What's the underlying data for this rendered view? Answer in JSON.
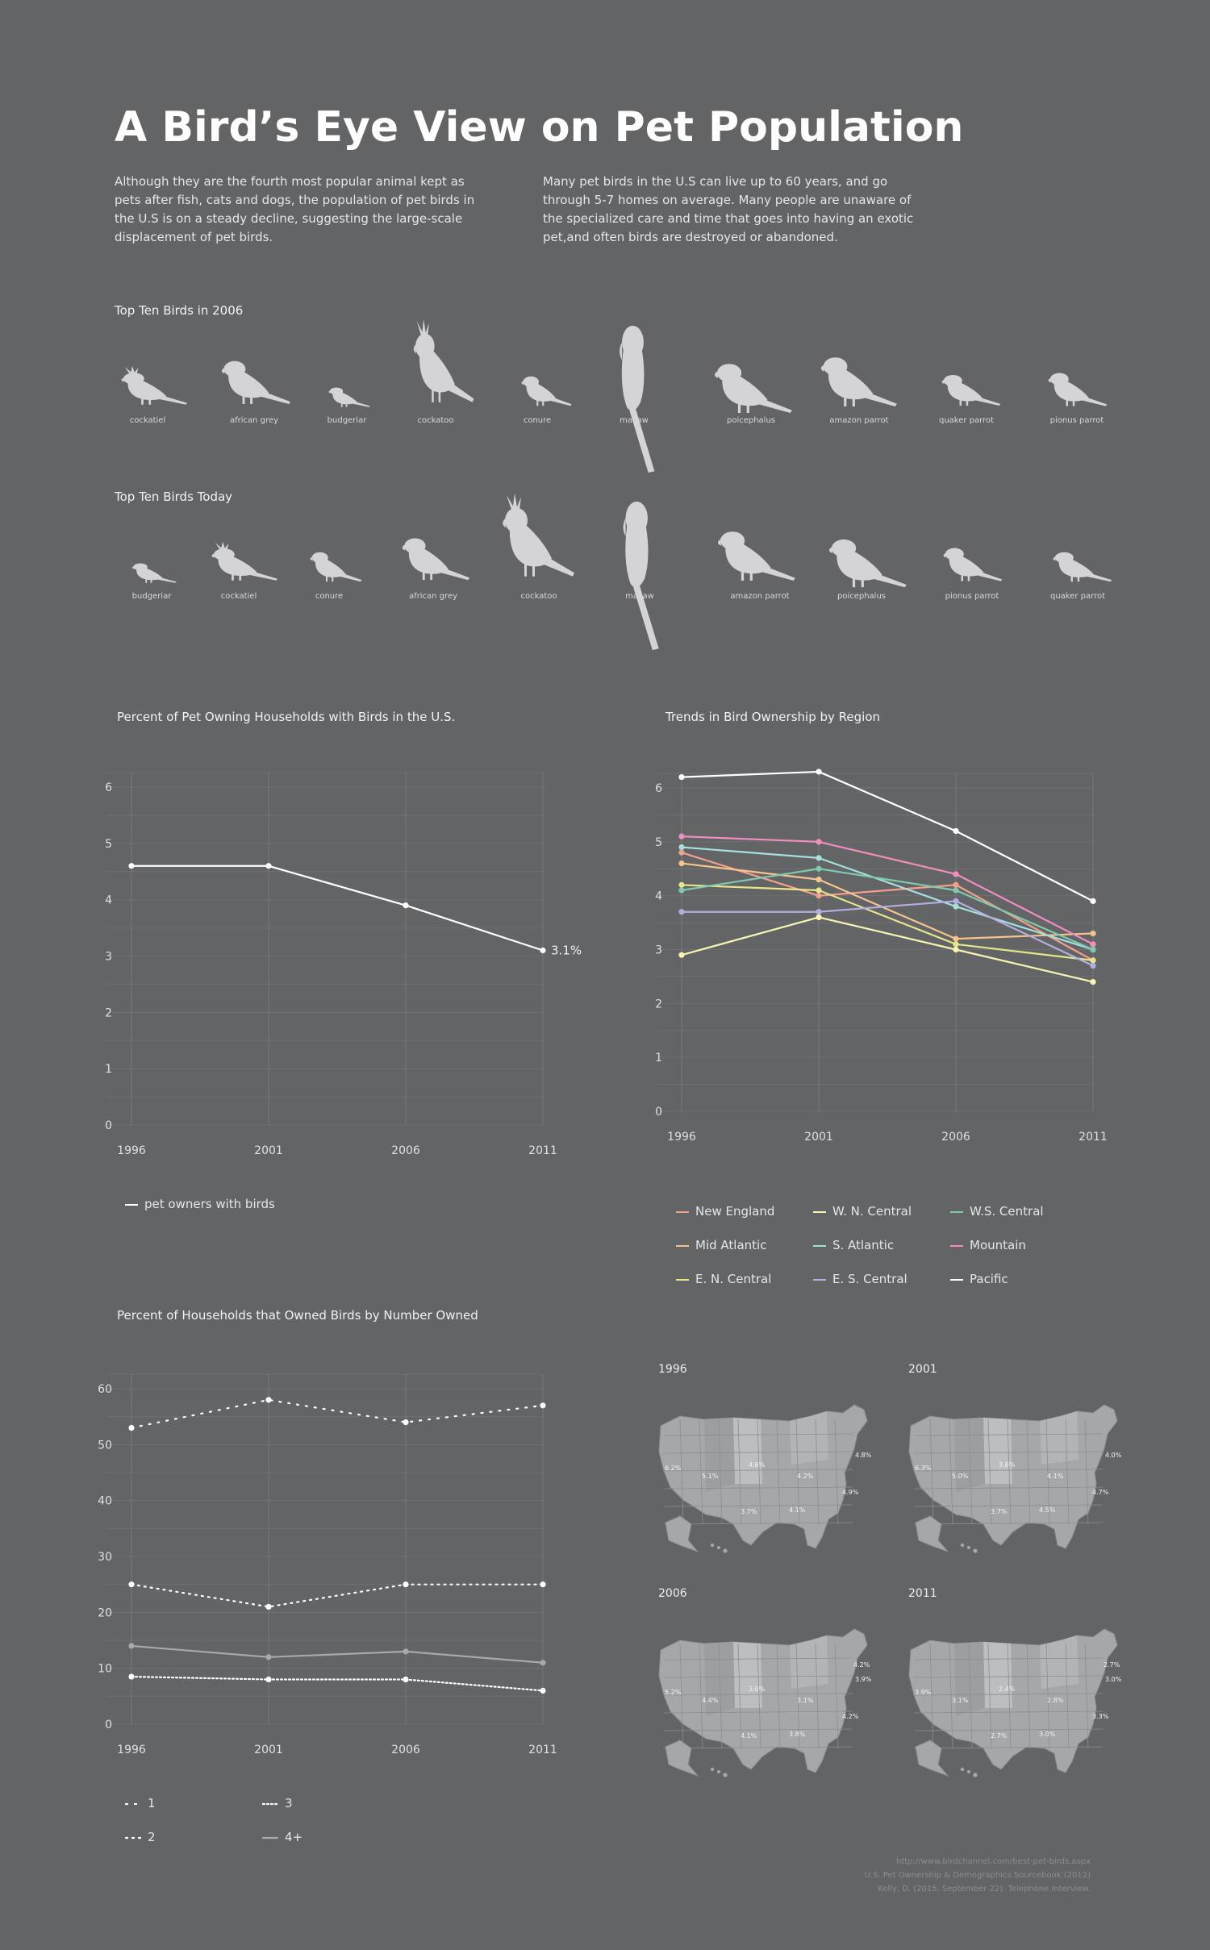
{
  "title": "A Bird’s Eye View on Pet Population",
  "intro": {
    "left": "Although they are the fourth most popular animal kept as pets after fish, cats and dogs, the population of pet birds in the U.S is on a steady decline, suggesting the large-scale displacement of pet birds.",
    "right": "Many pet birds in the U.S can live up to 60 years, and go through 5-7 homes on average. Many people are unaware of the specialized care and time that goes into having an exotic pet,and often birds are destroyed or abandoned."
  },
  "top_2006": {
    "title": "Top Ten Birds in 2006",
    "birds": [
      {
        "label": "cockatiel",
        "icon": "cockatiel-icon"
      },
      {
        "label": "african grey",
        "icon": "african-grey-icon"
      },
      {
        "label": "budgeriar",
        "icon": "budgerigar-icon"
      },
      {
        "label": "cockatoo",
        "icon": "cockatoo-icon"
      },
      {
        "label": "conure",
        "icon": "conure-icon"
      },
      {
        "label": "macaw",
        "icon": "macaw-icon"
      },
      {
        "label": "poicephalus",
        "icon": "poicephalus-icon"
      },
      {
        "label": "amazon parrot",
        "icon": "amazon-parrot-icon"
      },
      {
        "label": "quaker parrot",
        "icon": "quaker-parrot-icon"
      },
      {
        "label": "pionus parrot",
        "icon": "pionus-parrot-icon"
      }
    ]
  },
  "top_today": {
    "title": "Top Ten Birds Today",
    "birds": [
      {
        "label": "budgeriar",
        "icon": "budgerigar-icon"
      },
      {
        "label": "cockatiel",
        "icon": "cockatiel-icon"
      },
      {
        "label": "conure",
        "icon": "conure-icon"
      },
      {
        "label": "african grey",
        "icon": "african-grey-icon"
      },
      {
        "label": "cockatoo",
        "icon": "cockatoo-icon"
      },
      {
        "label": "macaw",
        "icon": "macaw-icon"
      },
      {
        "label": "amazon parrot",
        "icon": "amazon-parrot-icon"
      },
      {
        "label": "poicephalus",
        "icon": "poicephalus-icon"
      },
      {
        "label": "pionus parrot",
        "icon": "pionus-parrot-icon"
      },
      {
        "label": "quaker parrot",
        "icon": "quaker-parrot-icon"
      }
    ]
  },
  "colors": {
    "background": "#636466",
    "bird": "#d4d4d6",
    "grid": "#777879",
    "text": "#e6e6e6"
  },
  "chart_data": [
    {
      "type": "line",
      "title": "Percent of Pet Owning Households with Birds in the U.S.",
      "x": [
        "1996",
        "2001",
        "2006",
        "2011"
      ],
      "ylim": [
        0,
        6
      ],
      "yticks": [
        0,
        1,
        2,
        3,
        4,
        5,
        6
      ],
      "grid": true,
      "series": [
        {
          "name": "pet owners with birds",
          "values": [
            4.6,
            4.6,
            3.9,
            3.1
          ],
          "color": "#ffffff"
        }
      ],
      "annotations": [
        {
          "x": "2011",
          "text": "3.1%"
        }
      ],
      "legend": "bottom-left"
    },
    {
      "type": "line",
      "title": "Trends in Bird Ownership by Region",
      "x": [
        "1996",
        "2001",
        "2006",
        "2011"
      ],
      "ylim": [
        0,
        6
      ],
      "yticks": [
        0,
        1,
        2,
        3,
        4,
        5,
        6
      ],
      "grid": true,
      "series": [
        {
          "name": "New England",
          "values": [
            4.8,
            4.0,
            4.2,
            2.8
          ],
          "color": "#f2a08a"
        },
        {
          "name": "Mid Atlantic",
          "values": [
            4.6,
            4.3,
            3.2,
            3.3
          ],
          "color": "#f5c48e"
        },
        {
          "name": "E. N. Central",
          "values": [
            4.2,
            4.1,
            3.1,
            2.8
          ],
          "color": "#e5e58c"
        },
        {
          "name": "W. N. Central",
          "values": [
            2.9,
            3.6,
            3.0,
            2.4
          ],
          "color": "#f7f5b2"
        },
        {
          "name": "S. Atlantic",
          "values": [
            4.9,
            4.7,
            3.8,
            3.0
          ],
          "color": "#a6e0dc"
        },
        {
          "name": "E. S. Central",
          "values": [
            3.7,
            3.7,
            3.9,
            2.7
          ],
          "color": "#b3aee0"
        },
        {
          "name": "W.S. Central",
          "values": [
            4.1,
            4.5,
            4.1,
            3.0
          ],
          "color": "#7ecaad"
        },
        {
          "name": "Mountain",
          "values": [
            5.1,
            5.0,
            4.4,
            3.1
          ],
          "color": "#f08ebd"
        },
        {
          "name": "Pacific",
          "values": [
            6.2,
            6.3,
            5.2,
            3.9
          ],
          "color": "#ffffff"
        }
      ],
      "legend": "bottom"
    },
    {
      "type": "line",
      "title": "Percent of Households that Owned Birds by Number Owned",
      "x": [
        "1996",
        "2001",
        "2006",
        "2011"
      ],
      "ylim": [
        0,
        60
      ],
      "yticks": [
        0,
        10,
        20,
        30,
        40,
        50,
        60
      ],
      "grid": true,
      "series": [
        {
          "name": "1",
          "values": [
            53,
            58,
            54,
            57
          ],
          "color": "#ffffff",
          "dash": "2 9"
        },
        {
          "name": "2",
          "values": [
            25,
            21,
            25,
            25
          ],
          "color": "#ffffff",
          "dash": "2 6"
        },
        {
          "name": "3",
          "values": [
            8.5,
            8,
            8,
            6
          ],
          "color": "#ffffff",
          "dash": "2 3"
        },
        {
          "name": "4+",
          "values": [
            14,
            12,
            13,
            11
          ],
          "color": "#a9a9ab",
          "dash": ""
        }
      ],
      "legend": "bottom-left"
    }
  ],
  "maps": [
    {
      "year": "1996",
      "labels": [
        "6.2%",
        "5.1%",
        "4.6%",
        "4.2%",
        "4.9%",
        "4.1%",
        "3.7%",
        "4.8%"
      ]
    },
    {
      "year": "2001",
      "labels": [
        "6.3%",
        "5.0%",
        "3.6%",
        "4.1%",
        "4.7%",
        "4.5%",
        "3.7%",
        "4.0%"
      ]
    },
    {
      "year": "2006",
      "labels": [
        "5.2%",
        "4.4%",
        "3.0%",
        "3.1%",
        "4.2%",
        "3.8%",
        "4.1%",
        "3.9%",
        "4.2%"
      ]
    },
    {
      "year": "2011",
      "labels": [
        "3.9%",
        "3.1%",
        "2.4%",
        "2.8%",
        "3.3%",
        "3.0%",
        "2.7%",
        "3.0%",
        "2.7%"
      ]
    }
  ],
  "sources": [
    "http://www.birdchannel.com/best-pet-birds.aspx",
    "U.S. Pet Ownership & Demographics Sourcebook (2012)",
    "Kelly, D. (2015, September 22). Telephone interview."
  ]
}
